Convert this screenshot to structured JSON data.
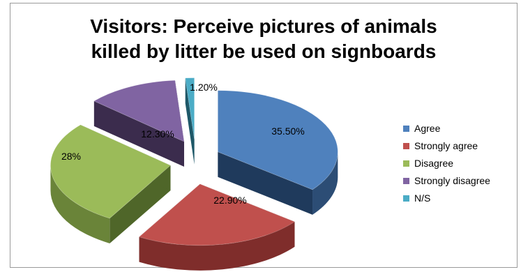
{
  "chart_data": {
    "type": "pie",
    "title_line1": "Visitors:  Perceive pictures of animals",
    "title_line2": "killed by litter be used on signboards",
    "slices": [
      {
        "label": "Agree",
        "value": 35.5,
        "value_label": "35.50%",
        "color": "#4F81BD",
        "side": "#2C4D75",
        "dark": "#1F3A5C"
      },
      {
        "label": "Strongly agree",
        "value": 22.9,
        "value_label": "22.90%",
        "color": "#C0504D",
        "side": "#7F2D2B",
        "dark": "#5E1F1E"
      },
      {
        "label": "Disagree",
        "value": 28,
        "value_label": "28%",
        "color": "#9BBB59",
        "side": "#6A8439",
        "dark": "#4F6629"
      },
      {
        "label": "Strongly disagree",
        "value": 12.3,
        "value_label": "12.30%",
        "color": "#8064A2",
        "side": "#4E3B66",
        "dark": "#3B2C4D"
      },
      {
        "label": "N/S",
        "value": 1.2,
        "value_label": "1.20%",
        "color": "#4BACC6",
        "side": "#2A7489",
        "dark": "#1E5868"
      }
    ],
    "legend_position": "right",
    "exploded": true,
    "three_d": true
  }
}
